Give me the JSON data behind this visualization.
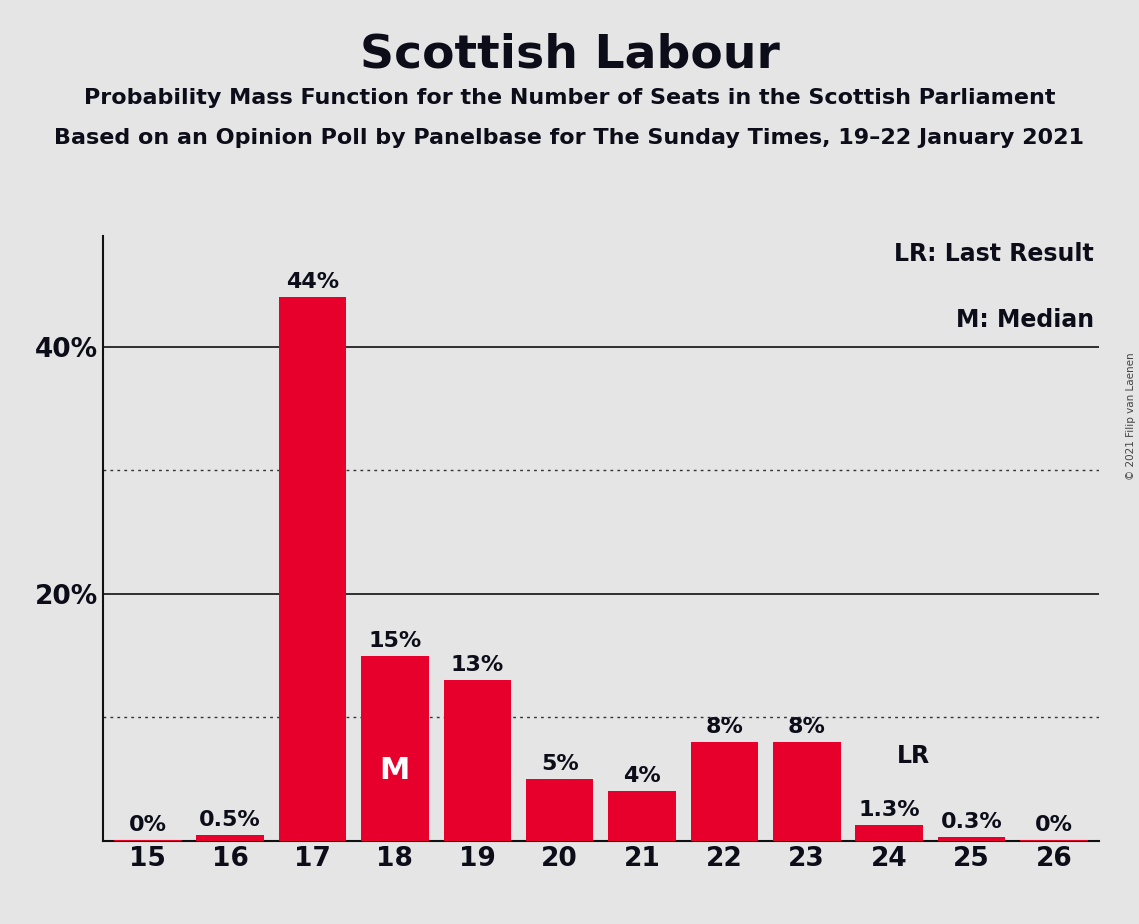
{
  "title": "Scottish Labour",
  "subtitle1": "Probability Mass Function for the Number of Seats in the Scottish Parliament",
  "subtitle2": "Based on an Opinion Poll by Panelbase for The Sunday Times, 19–22 January 2021",
  "copyright": "© 2021 Filip van Laenen",
  "categories": [
    15,
    16,
    17,
    18,
    19,
    20,
    21,
    22,
    23,
    24,
    25,
    26
  ],
  "values": [
    0.05,
    0.5,
    44.0,
    15.0,
    13.0,
    5.0,
    4.0,
    8.0,
    8.0,
    1.3,
    0.3,
    0.05
  ],
  "labels": [
    "0%",
    "0.5%",
    "44%",
    "15%",
    "13%",
    "5%",
    "4%",
    "8%",
    "8%",
    "1.3%",
    "0.3%",
    "0%"
  ],
  "bar_color": "#E8002C",
  "background_color": "#E5E5E5",
  "median_seat": 18,
  "last_result_seat": 24,
  "legend_lr": "LR: Last Result",
  "legend_m": "M: Median",
  "dotted_lines": [
    10,
    30
  ],
  "solid_lines": [
    20,
    40
  ],
  "ylim": [
    0,
    49
  ],
  "title_fontsize": 34,
  "subtitle_fontsize": 16,
  "label_fontsize": 16,
  "tick_fontsize": 19,
  "annotation_fontsize": 17,
  "m_fontsize": 22,
  "lr_fontsize": 17
}
